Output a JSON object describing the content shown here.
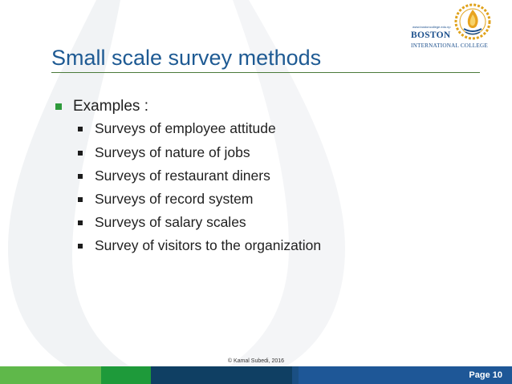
{
  "logo": {
    "url": "www.bostoncollege.edu.np",
    "name": "BOSTON",
    "subtitle": "INTERNATIONAL COLLEGE",
    "icon": "flame-emblem-icon"
  },
  "slide": {
    "title": "Small scale survey methods",
    "bullet": "Examples :",
    "sub_bullets": [
      "Surveys of employee attitude",
      "Surveys of nature of jobs",
      "Surveys of restaurant diners",
      "Surveys of record system",
      "Surveys of salary scales",
      "Survey of visitors to the organization"
    ]
  },
  "footer": {
    "copyright": "© Kamal Subedi, 2016",
    "page_label": "Page 10",
    "colors": [
      "#5fb84a",
      "#1e9a3a",
      "#0f3f63",
      "#1a4f83",
      "#1e5797"
    ]
  },
  "colors": {
    "title": "#1e5a93",
    "level1_bullet": "#2e9a3b",
    "watermark": "#f1f3f5"
  }
}
